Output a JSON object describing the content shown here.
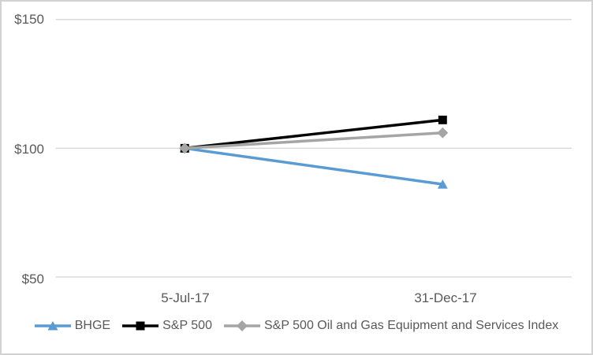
{
  "chart_data": {
    "type": "line",
    "title": "",
    "xlabel": "",
    "ylabel": "",
    "x_categories": [
      "5-Jul-17",
      "31-Dec-17"
    ],
    "y_axis": {
      "range": [
        50,
        150
      ],
      "ticks": [
        {
          "value": 150,
          "label": "$150"
        },
        {
          "value": 100,
          "label": "$100"
        },
        {
          "value": 50,
          "label": "$50"
        }
      ]
    },
    "grid": "horizontal-only",
    "legend_position": "bottom-center",
    "series": [
      {
        "name": "BHGE",
        "color": "#5B9BD5",
        "marker": "triangle",
        "values": [
          100,
          86
        ]
      },
      {
        "name": "S&P 500",
        "color": "#000000",
        "marker": "square",
        "values": [
          100,
          111
        ]
      },
      {
        "name": "S&P 500 Oil and Gas Equipment and Services Index",
        "color": "#A5A5A5",
        "marker": "diamond",
        "values": [
          100,
          106
        ]
      }
    ],
    "colors": {
      "gridline": "#D9D9D9",
      "axis_text": "#595959",
      "legend_text": "#595959",
      "border": "#D2D2D2",
      "background": "#FFFFFF"
    }
  }
}
